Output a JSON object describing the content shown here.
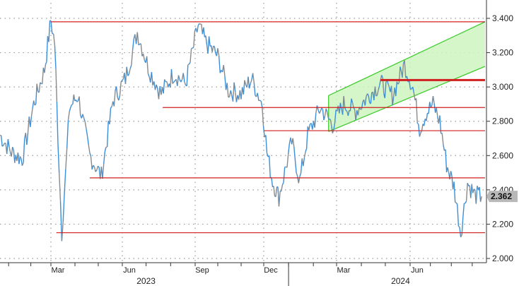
{
  "chart_data": {
    "type": "line",
    "title": "",
    "xlabel": "",
    "ylabel": "",
    "ylim": [
      2.0,
      3.5
    ],
    "y_ticks": [
      "2.000",
      "2.200",
      "2.400",
      "2.600",
      "2.800",
      "3.000",
      "3.200",
      "3.400"
    ],
    "x_months": [
      "Mar",
      "Jun",
      "Sep",
      "Dec",
      "Mar",
      "Jun"
    ],
    "x_years": [
      "2023",
      "2024"
    ],
    "last_value": "2.362",
    "grid": true,
    "colors": {
      "series_gray": "#8a8a8a",
      "series_blue": "#3b8fd9",
      "support_lines": "#d11f1f",
      "channel_fill": "#ccf5c0",
      "channel_edge": "#44cc33",
      "last_badge": "#b8b8b8"
    },
    "series": [
      {
        "x": [
          "2022-12-20",
          "2023-01-05",
          "2023-01-20",
          "2023-02-05",
          "2023-02-20",
          "2023-03-01",
          "2023-03-06",
          "2023-03-10",
          "2023-03-15",
          "2023-03-20",
          "2023-03-25",
          "2023-04-05",
          "2023-04-20",
          "2023-05-05",
          "2023-05-20",
          "2023-06-05",
          "2023-06-20",
          "2023-07-05",
          "2023-07-20",
          "2023-08-05",
          "2023-08-20",
          "2023-09-05",
          "2023-09-15",
          "2023-10-01",
          "2023-10-15",
          "2023-11-01",
          "2023-11-15",
          "2023-11-29",
          "2023-12-05",
          "2023-12-12",
          "2023-12-20",
          "2024-01-05",
          "2024-01-15",
          "2024-01-25",
          "2024-02-10",
          "2024-02-25",
          "2024-03-10",
          "2024-03-25",
          "2024-04-10",
          "2024-04-25",
          "2024-05-10",
          "2024-05-25",
          "2024-06-05",
          "2024-06-15",
          "2024-06-25",
          "2024-07-05",
          "2024-07-15",
          "2024-07-25",
          "2024-08-05",
          "2024-08-15",
          "2024-08-25",
          "2024-09-05",
          "2024-09-15"
        ],
        "values": [
          2.72,
          2.62,
          2.58,
          2.9,
          3.1,
          3.39,
          3.25,
          2.72,
          2.15,
          2.5,
          2.88,
          2.95,
          2.6,
          2.48,
          2.92,
          3.05,
          3.32,
          3.1,
          2.96,
          3.08,
          3.02,
          3.36,
          3.26,
          3.18,
          2.98,
          2.96,
          3.05,
          2.9,
          2.62,
          2.45,
          2.36,
          2.68,
          2.45,
          2.72,
          2.88,
          2.78,
          2.9,
          2.86,
          2.95,
          3.02,
          2.95,
          3.13,
          3.0,
          2.76,
          2.85,
          2.9,
          2.8,
          2.55,
          2.42,
          2.15,
          2.44,
          2.37,
          2.362
        ]
      }
    ],
    "horizontal_levels": [
      {
        "value": 3.38,
        "from": "2023-03-01",
        "to": "2024-09-20"
      },
      {
        "value": 2.88,
        "from": "2023-07-22",
        "to": "2024-09-20"
      },
      {
        "value": 2.745,
        "from": "2023-12-01",
        "to": "2024-09-20"
      },
      {
        "value": 2.47,
        "from": "2023-04-20",
        "to": "2024-09-20"
      },
      {
        "value": 2.15,
        "from": "2023-03-08",
        "to": "2024-09-20"
      },
      {
        "value": 3.04,
        "from": "2024-04-25",
        "to": "2024-09-20",
        "thick": true
      }
    ],
    "channel": {
      "start": "2024-02-20",
      "end": "2024-09-20",
      "lower": [
        2.74,
        3.12
      ],
      "upper": [
        2.95,
        3.38
      ]
    }
  }
}
